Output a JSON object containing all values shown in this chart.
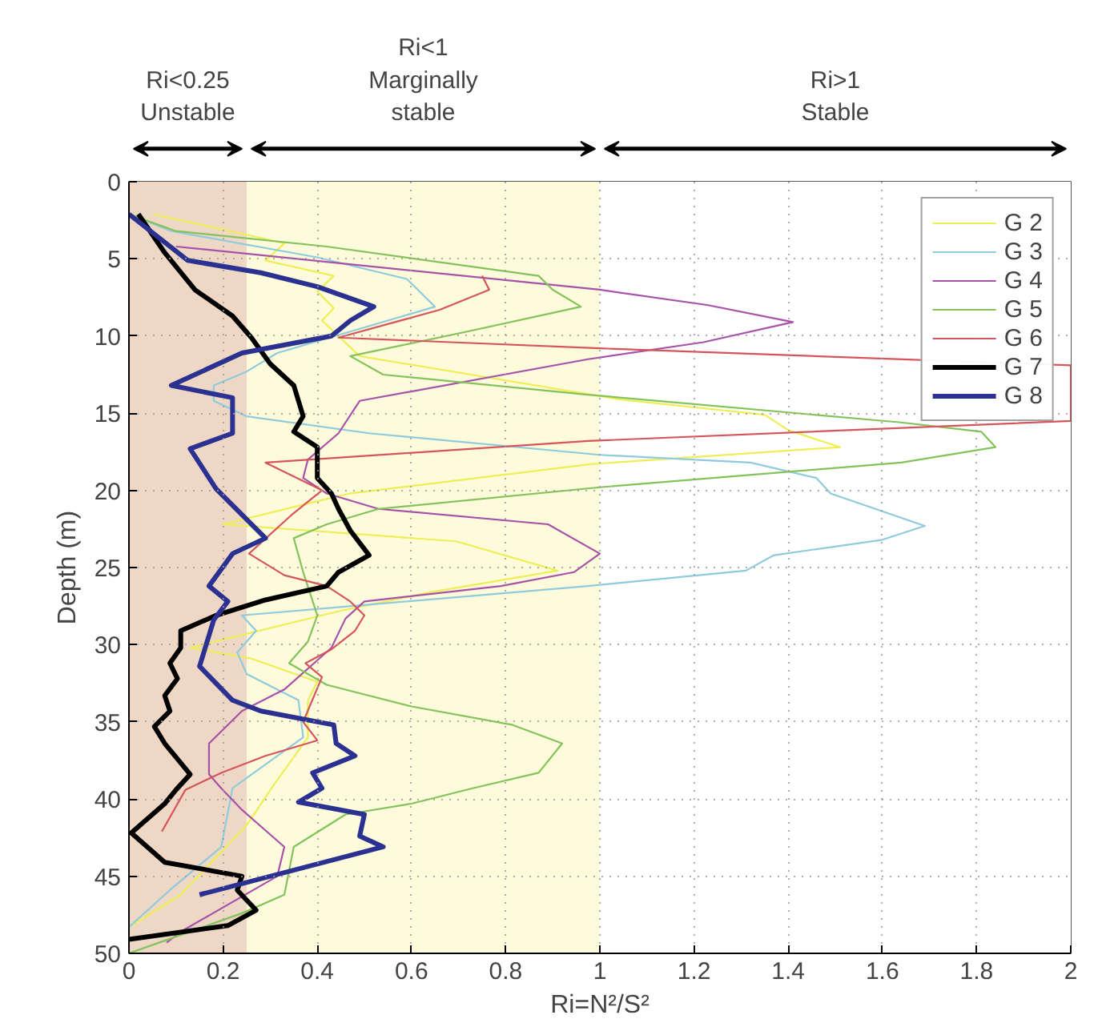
{
  "chart_data": {
    "type": "line",
    "xlabel": "Ri=N²/S²",
    "ylabel": "Depth (m)",
    "xlim": [
      0,
      2
    ],
    "xticks": [
      0,
      0.2,
      0.4,
      0.6,
      0.8,
      1,
      1.2,
      1.4,
      1.6,
      1.8,
      2
    ],
    "ylim": [
      50,
      0
    ],
    "yticks": [
      0,
      5,
      10,
      15,
      20,
      25,
      30,
      35,
      40,
      45,
      50
    ],
    "grid": true,
    "legend": "top right",
    "line_style": "solid",
    "bands": [
      {
        "axis": "x",
        "from": 0,
        "to": 0.25,
        "label": "Ri<0.25\nUnstable",
        "color": "#efd7c6"
      },
      {
        "axis": "x",
        "from": 0.25,
        "to": 1,
        "label": "Ri<1\nMarginally\nstable",
        "color": "#fdfbdc"
      },
      {
        "axis": "x",
        "from": 1,
        "to": 2,
        "label": "Ri>1\nStable",
        "color": "#ffffff"
      }
    ],
    "series": [
      {
        "name": "G 2",
        "color": "#eeee55",
        "x": [
          0.05,
          0.26,
          0.33,
          0.29,
          0.435,
          0.4,
          0.435,
          0.41,
          0.49,
          1.04,
          1.35,
          1.4,
          1.51,
          0.98,
          0.47,
          0.4,
          0.2,
          0.695,
          0.91,
          0.64,
          0.45,
          0.13,
          0.26,
          0.4,
          0.38,
          0.38,
          0.305,
          0.25,
          0.11,
          0
        ],
        "values": [
          2.1,
          3.5,
          4.0,
          5.1,
          6.1,
          7.1,
          8.2,
          9.0,
          11.3,
          14.1,
          15.1,
          16.1,
          17.2,
          18.3,
          20.2,
          20.7,
          22.2,
          23.3,
          25.2,
          26.6,
          27.8,
          30.2,
          30.9,
          32.4,
          33.6,
          36.0,
          39.2,
          41.7,
          46.2,
          48.3
        ]
      },
      {
        "name": "G 3",
        "color": "#8fcbdc",
        "x": [
          0,
          0.09,
          0.4,
          0.59,
          0.65,
          0.315,
          0.25,
          0.18,
          0.18,
          0.25,
          0.51,
          1.0,
          1.32,
          1.46,
          1.49,
          1.69,
          1.6,
          1.37,
          1.31,
          0.975,
          0.24,
          0.27,
          0.23,
          0.25,
          0.36,
          0.37,
          0.22,
          0.196,
          0.087,
          0
        ],
        "values": [
          2.1,
          3.2,
          4.9,
          6.3,
          8.1,
          11.1,
          12.3,
          13.2,
          14.2,
          15.2,
          16.3,
          17.7,
          18.2,
          19.2,
          20.2,
          22.3,
          23.2,
          24.2,
          25.2,
          26.2,
          28.1,
          29.1,
          30.5,
          31.9,
          33.6,
          36.0,
          39.3,
          43.1,
          45.9,
          48.3
        ]
      },
      {
        "name": "G 4",
        "color": "#a652a8",
        "x": [
          0.1,
          1.0,
          1.23,
          1.41,
          1.22,
          0.975,
          0.49,
          0.445,
          0.38,
          0.37,
          0.42,
          0.53,
          0.89,
          1.0,
          0.945,
          0.79,
          0.5,
          0.46,
          0.43,
          0.33,
          0.24,
          0.17,
          0.17,
          0.196,
          0.24,
          0.33,
          0.315,
          0.11,
          0.08
        ],
        "values": [
          4.2,
          7.0,
          8.0,
          9.1,
          10.4,
          11.5,
          14.2,
          16.3,
          18.0,
          19.2,
          20.2,
          21.2,
          22.2,
          24.1,
          25.3,
          26.2,
          27.2,
          28.3,
          30.2,
          32.9,
          34.3,
          36.4,
          38.4,
          39.3,
          40.7,
          43.1,
          45.0,
          48.6,
          49.3
        ]
      },
      {
        "name": "G 5",
        "color": "#84c25a",
        "x": [
          0,
          0.1,
          0.42,
          0.87,
          0.9,
          0.96,
          0.72,
          0.47,
          0.54,
          0.975,
          1.64,
          1.81,
          1.84,
          1.64,
          1.0,
          0.53,
          0.42,
          0.35,
          0.37,
          0.4,
          0.38,
          0.34,
          0.42,
          0.6,
          0.815,
          0.92,
          0.87,
          0.73,
          0.6,
          0.46,
          0.35,
          0.33,
          0.24,
          0
        ],
        "values": [
          2.1,
          3.2,
          4.2,
          6.1,
          7.0,
          8.1,
          9.7,
          11.3,
          12.5,
          13.8,
          15.6,
          16.2,
          17.2,
          18.2,
          19.8,
          21.2,
          22.2,
          23.1,
          25.3,
          28.1,
          29.8,
          31.2,
          32.6,
          34.0,
          35.2,
          36.4,
          38.3,
          39.3,
          40.3,
          41.0,
          43.1,
          46.2,
          47.4,
          50
        ]
      },
      {
        "name": "G 6",
        "color": "#d5555a",
        "x": [
          0.75,
          0.765,
          0.66,
          0.445,
          1.0,
          2.0,
          2.0,
          0.975,
          0.29,
          0.41,
          0.345,
          0.255,
          0.33,
          0.42,
          0.47,
          0.5,
          0.48,
          0.43,
          0.375,
          0.41,
          0.37,
          0.4,
          0.29,
          0.196,
          0.12,
          0.07
        ],
        "values": [
          6.1,
          7.0,
          8.3,
          10.1,
          10.8,
          11.9,
          15.5,
          16.8,
          18.2,
          20.0,
          21.6,
          24.1,
          25.5,
          26.2,
          27.2,
          28.1,
          29.1,
          30.3,
          31.2,
          32.1,
          35.0,
          36.2,
          37.2,
          38.3,
          39.4,
          42.1
        ]
      },
      {
        "name": "G 7",
        "color": "#000000",
        "x": [
          0.02,
          0.076,
          0.14,
          0.22,
          0.26,
          0.3,
          0.35,
          0.37,
          0.35,
          0.4,
          0.4,
          0.43,
          0.445,
          0.47,
          0.51,
          0.445,
          0.42,
          0.29,
          0.185,
          0.11,
          0.11,
          0.087,
          0.103,
          0.076,
          0.087,
          0.054,
          0.076,
          0.103,
          0.13,
          0.1,
          0.076,
          0.005,
          0.076,
          0.24,
          0.23,
          0.27,
          0.21,
          0
        ],
        "values": [
          2.1,
          4.6,
          7.0,
          8.7,
          10.1,
          11.8,
          13.2,
          15.2,
          16.2,
          17.2,
          19.2,
          20.2,
          21.2,
          22.6,
          24.2,
          25.3,
          26.2,
          27.1,
          28.1,
          29.1,
          30.2,
          31.2,
          32.2,
          33.3,
          34.3,
          35.3,
          36.4,
          37.4,
          38.4,
          39.4,
          40.3,
          42.2,
          44.1,
          45.0,
          45.9,
          47.2,
          48.2,
          49.1
        ]
      },
      {
        "name": "G 8",
        "color": "#2b3190",
        "x": [
          0,
          0.125,
          0.28,
          0.4,
          0.52,
          0.47,
          0.43,
          0.24,
          0.09,
          0.22,
          0.22,
          0.13,
          0.185,
          0.29,
          0.22,
          0.17,
          0.21,
          0.18,
          0.15,
          0.22,
          0.28,
          0.435,
          0.44,
          0.48,
          0.39,
          0.41,
          0.36,
          0.5,
          0.49,
          0.54,
          0.15
        ],
        "values": [
          2.1,
          5.1,
          5.9,
          6.8,
          8.1,
          9.0,
          10.0,
          11.1,
          13.2,
          14.0,
          16.3,
          17.3,
          19.9,
          23.1,
          24.1,
          26.2,
          27.2,
          28.4,
          31.4,
          33.6,
          34.3,
          35.2,
          36.4,
          37.2,
          38.3,
          39.3,
          40.2,
          41.0,
          42.4,
          43.1,
          46.2
        ]
      }
    ]
  }
}
